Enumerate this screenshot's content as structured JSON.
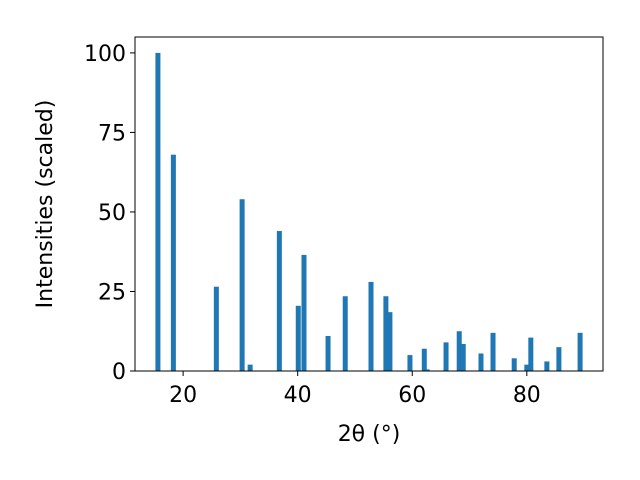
{
  "chart_data": {
    "type": "bar",
    "xlabel": "2θ (°)",
    "ylabel": "Intensities (scaled)",
    "color": "#1f77b4",
    "x": [
      15.6,
      18.3,
      25.8,
      30.3,
      31.7,
      36.8,
      40.1,
      41.1,
      45.3,
      48.3,
      52.8,
      55.4,
      56.1,
      59.6,
      62.1,
      62.6,
      65.9,
      68.2,
      68.9,
      72.0,
      74.1,
      77.8,
      80.0,
      80.7,
      83.5,
      85.6,
      89.3
    ],
    "values": [
      100,
      68,
      26.5,
      54,
      2,
      44,
      20.5,
      36.5,
      11,
      23.5,
      28,
      23.5,
      18.5,
      5,
      7,
      0.5,
      9,
      12.5,
      8.5,
      5.5,
      12,
      4,
      2,
      10.5,
      3,
      7.5,
      12
    ],
    "xlim": [
      11.6,
      93.3
    ],
    "ylim": [
      0,
      105
    ],
    "xticks": [
      20,
      40,
      60,
      80
    ],
    "yticks": [
      0,
      25,
      50,
      75,
      100
    ]
  }
}
